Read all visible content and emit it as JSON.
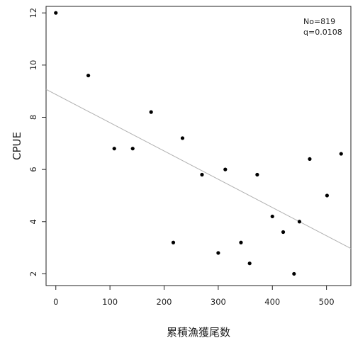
{
  "chart_data": {
    "type": "scatter",
    "xlabel": "累積漁獲尾数",
    "ylabel": "CPUE",
    "xlim": [
      -18,
      545
    ],
    "ylim": [
      1.55,
      12.25
    ],
    "xticks": [
      0,
      100,
      200,
      300,
      400,
      500
    ],
    "yticks": [
      2,
      4,
      6,
      8,
      10,
      12
    ],
    "grid": false,
    "points": [
      {
        "x": 0,
        "y": 12.0
      },
      {
        "x": 60,
        "y": 9.6
      },
      {
        "x": 108,
        "y": 6.8
      },
      {
        "x": 142,
        "y": 6.8
      },
      {
        "x": 176,
        "y": 8.2
      },
      {
        "x": 217,
        "y": 3.2
      },
      {
        "x": 234,
        "y": 7.2
      },
      {
        "x": 270,
        "y": 5.8
      },
      {
        "x": 300,
        "y": 2.8
      },
      {
        "x": 313,
        "y": 6.0
      },
      {
        "x": 342,
        "y": 3.2
      },
      {
        "x": 358,
        "y": 2.4
      },
      {
        "x": 372,
        "y": 5.8
      },
      {
        "x": 400,
        "y": 4.2
      },
      {
        "x": 420,
        "y": 3.6
      },
      {
        "x": 440,
        "y": 2.0
      },
      {
        "x": 450,
        "y": 4.0
      },
      {
        "x": 469,
        "y": 6.4
      },
      {
        "x": 501,
        "y": 5.0
      },
      {
        "x": 527,
        "y": 6.6
      }
    ],
    "regression_line": {
      "from": [
        -18,
        9.07
      ],
      "to": [
        545,
        2.97
      ],
      "color": "#b0b0b0"
    },
    "point_color": "#000000",
    "annotations": [
      "No=819",
      "q=0.0108"
    ]
  }
}
